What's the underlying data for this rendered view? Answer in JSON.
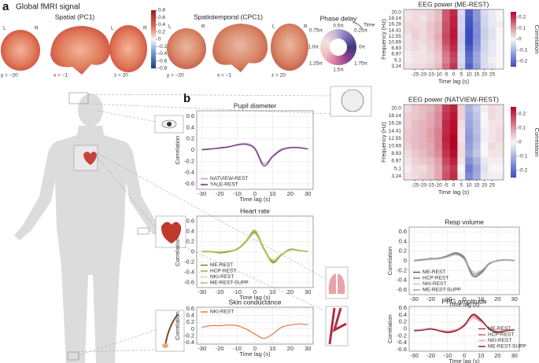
{
  "panel_labels": [
    "a",
    "b"
  ],
  "brain": {
    "title": "Global fMRI signal",
    "spatial_title": "Spatial (PC1)",
    "spatiotemporal_title": "Spatiotemporal (CPC1)",
    "coords": [
      "y = −20",
      "x = −1",
      "z = 20"
    ],
    "lr": [
      "L",
      "R"
    ],
    "clim": [
      -0.8,
      0.8
    ],
    "colorbar_ticks": [
      0.8,
      0.6,
      0.4,
      0.2,
      0,
      -0.2,
      -0.4,
      -0.6,
      -0.8
    ]
  },
  "phase": {
    "title": "Phase delay",
    "labels": [
      "0.5π",
      "0.25π",
      "0π",
      "1.75π",
      "1.5π",
      "1.25π",
      "1.0π",
      "0.75π"
    ],
    "time_label": "Time"
  },
  "chart_data": [
    {
      "type": "heatmap",
      "title": "EEG power (ME-REST)",
      "x": [
        -30,
        -25,
        -20,
        -15,
        -10,
        -5,
        0,
        5,
        10,
        15,
        20,
        25,
        30
      ],
      "categories": [
        "20.0",
        "18.14",
        "16.28",
        "14.41",
        "12.55",
        "10.69",
        "8.83",
        "6.97",
        "5.1",
        "3.24"
      ],
      "z": [
        [
          0.02,
          0.03,
          0.03,
          0.04,
          0.06,
          0.16,
          0.21,
          -0.04,
          -0.22,
          -0.14,
          -0.04,
          -0.02,
          0.0
        ],
        [
          0.02,
          0.03,
          0.02,
          0.04,
          0.06,
          0.16,
          0.22,
          -0.05,
          -0.23,
          -0.14,
          -0.05,
          -0.02,
          0.0
        ],
        [
          0.03,
          0.03,
          0.03,
          0.05,
          0.07,
          0.17,
          0.22,
          -0.05,
          -0.24,
          -0.15,
          -0.05,
          -0.02,
          0.01
        ],
        [
          0.03,
          0.04,
          0.03,
          0.05,
          0.07,
          0.17,
          0.23,
          -0.05,
          -0.25,
          -0.15,
          -0.06,
          -0.03,
          0.0
        ],
        [
          0.02,
          0.04,
          0.03,
          0.05,
          0.08,
          0.18,
          0.23,
          -0.06,
          -0.26,
          -0.16,
          -0.06,
          -0.03,
          0.0
        ],
        [
          0.02,
          0.03,
          0.03,
          0.04,
          0.07,
          0.17,
          0.22,
          -0.06,
          -0.25,
          -0.15,
          -0.05,
          -0.02,
          0.0
        ],
        [
          0.02,
          0.03,
          0.02,
          0.04,
          0.06,
          0.15,
          0.21,
          -0.05,
          -0.23,
          -0.14,
          -0.05,
          -0.02,
          0.0
        ],
        [
          0.01,
          0.02,
          0.02,
          0.03,
          0.05,
          0.13,
          0.19,
          -0.04,
          -0.21,
          -0.12,
          -0.04,
          -0.02,
          0.0
        ],
        [
          0.01,
          0.02,
          0.02,
          0.03,
          0.05,
          0.12,
          0.18,
          -0.04,
          -0.2,
          -0.12,
          -0.04,
          -0.01,
          0.0
        ],
        [
          0.02,
          0.03,
          0.03,
          0.04,
          0.06,
          0.14,
          0.2,
          -0.05,
          -0.22,
          -0.13,
          -0.04,
          -0.02,
          0.0
        ]
      ],
      "xlim": [
        -32.5,
        32.5
      ],
      "xticks": [
        -25,
        -20,
        -15,
        -10,
        -5,
        0,
        5,
        10,
        15,
        20,
        25
      ],
      "xlabel": "Time lag (s)",
      "ylabel": "Frequency (Hz)",
      "zlim": [
        -0.25,
        0.25
      ],
      "zticks": [
        0.2,
        0.1,
        0,
        -0.1,
        -0.2
      ],
      "colorbar_label": "Correlation"
    },
    {
      "type": "heatmap",
      "title": "EEG power (NATVIEW-REST)",
      "x": [
        -30,
        -25,
        -20,
        -15,
        -10,
        -5,
        0,
        5,
        10,
        15,
        20,
        25,
        30
      ],
      "categories": [
        "20.0",
        "18.14",
        "16.28",
        "14.41",
        "12.55",
        "10.69",
        "8.83",
        "6.97",
        "5.1",
        "3.24"
      ],
      "z": [
        [
          0.03,
          0.05,
          0.06,
          0.07,
          0.1,
          0.19,
          0.22,
          0.04,
          -0.1,
          -0.06,
          0.01,
          0.03,
          0.02
        ],
        [
          0.04,
          0.05,
          0.06,
          0.08,
          0.11,
          0.2,
          0.23,
          0.04,
          -0.11,
          -0.07,
          0.0,
          0.03,
          0.02
        ],
        [
          0.04,
          0.06,
          0.07,
          0.08,
          0.11,
          0.21,
          0.24,
          0.03,
          -0.12,
          -0.08,
          0.0,
          0.02,
          0.02
        ],
        [
          0.05,
          0.06,
          0.07,
          0.09,
          0.12,
          0.21,
          0.24,
          0.02,
          -0.13,
          -0.08,
          -0.01,
          0.02,
          0.03
        ],
        [
          0.05,
          0.06,
          0.07,
          0.09,
          0.12,
          0.22,
          0.25,
          0.02,
          -0.14,
          -0.09,
          -0.01,
          0.02,
          0.03
        ],
        [
          0.04,
          0.06,
          0.07,
          0.08,
          0.12,
          0.21,
          0.25,
          0.03,
          -0.13,
          -0.08,
          0.0,
          0.03,
          0.02
        ],
        [
          0.03,
          0.05,
          0.06,
          0.08,
          0.11,
          0.2,
          0.24,
          0.03,
          -0.12,
          -0.07,
          0.0,
          0.02,
          0.02
        ],
        [
          0.02,
          0.04,
          0.05,
          0.06,
          0.09,
          0.18,
          0.22,
          0.02,
          -0.15,
          -0.1,
          -0.02,
          0.01,
          0.01
        ],
        [
          0.01,
          0.03,
          0.03,
          0.05,
          0.08,
          0.16,
          0.2,
          0.0,
          -0.18,
          -0.12,
          -0.03,
          0.0,
          0.0
        ],
        [
          0.02,
          0.03,
          0.04,
          0.05,
          0.08,
          0.17,
          0.21,
          0.01,
          -0.16,
          -0.11,
          -0.02,
          0.01,
          0.01
        ]
      ],
      "xlim": [
        -32.5,
        32.5
      ],
      "xticks": [
        -25,
        -20,
        -15,
        -10,
        -5,
        0,
        5,
        10,
        15,
        20,
        25
      ],
      "xlabel": "Time lag (s)",
      "ylabel": "Frequency (Hz)",
      "zlim": [
        -0.25,
        0.25
      ],
      "zticks": [
        0.2,
        0.1,
        0,
        -0.1,
        -0.2
      ],
      "colorbar_label": "Correlation"
    },
    {
      "type": "line",
      "title": "Pupil diameter",
      "x": [
        -30,
        -25,
        -20,
        -15,
        -10,
        -5,
        0,
        5,
        10,
        15,
        20,
        25,
        30
      ],
      "series": [
        {
          "name": "NATVIEW-REST",
          "color": "#c58fcc",
          "values": [
            0,
            0.02,
            0.03,
            0.05,
            0.1,
            0.12,
            0.04,
            -0.24,
            -0.1,
            0.02,
            0.05,
            0.05,
            0.02
          ]
        },
        {
          "name": "YALE-REST",
          "color": "#5a2566",
          "values": [
            0.01,
            0.02,
            0.04,
            0.06,
            0.09,
            0.1,
            0.02,
            -0.28,
            -0.12,
            0.0,
            0.04,
            0.04,
            0.02
          ]
        }
      ],
      "xlim": [
        -33,
        33
      ],
      "xticks": [
        -30,
        -20,
        -10,
        0,
        10,
        20,
        30
      ],
      "ylim": [
        -0.7,
        0.7
      ],
      "yticks": [
        0.6,
        0.4,
        0.2,
        0,
        -0.2,
        -0.4,
        -0.6
      ],
      "xlabel": "Time lag (s)",
      "ylabel": "Correlation",
      "legend": "lower left",
      "grid": true
    },
    {
      "type": "line",
      "title": "Heart rate",
      "x": [
        -30,
        -25,
        -20,
        -15,
        -10,
        -5,
        0,
        5,
        10,
        15,
        20,
        25,
        30
      ],
      "series": [
        {
          "name": "ME-REST",
          "color": "#5f7f1e",
          "values": [
            0,
            0,
            -0.02,
            0,
            0.05,
            0.2,
            0.38,
            0.05,
            -0.2,
            -0.05,
            0.05,
            0.03,
            0
          ]
        },
        {
          "name": "HCP-REST",
          "color": "#8db33a",
          "values": [
            0.01,
            0.01,
            0,
            0.01,
            0.06,
            0.22,
            0.42,
            0.08,
            -0.18,
            -0.06,
            0.04,
            0.02,
            0.01
          ]
        },
        {
          "name": "NKI-REST",
          "color": "#c9dd8f",
          "values": [
            0,
            0.01,
            0,
            0.02,
            0.04,
            0.18,
            0.35,
            0.04,
            -0.15,
            -0.04,
            0.03,
            0.02,
            0
          ]
        },
        {
          "name": "ME-REST-SUPP",
          "color": "#a6c25a",
          "values": [
            0,
            0,
            -0.01,
            0.01,
            0.05,
            0.21,
            0.4,
            0.06,
            -0.22,
            -0.07,
            0.04,
            0.03,
            0.01
          ]
        }
      ],
      "xlim": [
        -33,
        33
      ],
      "xticks": [
        -30,
        -20,
        -10,
        0,
        10,
        20,
        30
      ],
      "ylim": [
        -0.7,
        0.7
      ],
      "yticks": [
        0.6,
        0.4,
        0.2,
        0,
        -0.2,
        -0.4,
        -0.6
      ],
      "xlabel": "Time lag (s)",
      "ylabel": "Correlation",
      "legend": "lower left",
      "grid": true
    },
    {
      "type": "line",
      "title": "Skin conductance",
      "x": [
        -30,
        -25,
        -20,
        -15,
        -10,
        -5,
        0,
        5,
        10,
        15,
        20,
        25,
        30
      ],
      "series": [
        {
          "name": "NKI-REST",
          "color": "#e0733a",
          "values": [
            0.05,
            0.1,
            0.1,
            0.12,
            0.1,
            0,
            -0.15,
            -0.28,
            -0.15,
            0.05,
            0.12,
            0.15,
            0.13
          ]
        }
      ],
      "xlim": [
        -33,
        33
      ],
      "xticks": [
        -30,
        -20,
        -10,
        0,
        10,
        20,
        30
      ],
      "ylim": [
        -0.45,
        0.65
      ],
      "yticks": [
        0.6,
        0.4,
        0.2,
        0,
        -0.2,
        -0.4
      ],
      "xlabel": "Time lag (s)",
      "ylabel": "Correlation",
      "legend": "upper left",
      "grid": true
    },
    {
      "type": "line",
      "title": "Resp volume",
      "x": [
        -30,
        -25,
        -20,
        -15,
        -10,
        -5,
        0,
        5,
        10,
        15,
        20,
        25,
        30
      ],
      "series": [
        {
          "name": "ME-REST",
          "color": "#555555",
          "values": [
            0,
            0.02,
            0.05,
            0.05,
            0.1,
            0.15,
            0.05,
            -0.3,
            -0.25,
            -0.05,
            0,
            0.02,
            0
          ]
        },
        {
          "name": "HCP-REST",
          "color": "#7d7d7d",
          "values": [
            0.01,
            0.03,
            0.04,
            0.06,
            0.11,
            0.17,
            0.08,
            -0.26,
            -0.22,
            -0.06,
            0.01,
            0.02,
            0.01
          ]
        },
        {
          "name": "NKI-REST",
          "color": "#c4c4c4",
          "values": [
            0,
            0.01,
            0.03,
            0.04,
            0.08,
            0.12,
            0.04,
            -0.22,
            -0.2,
            -0.04,
            0,
            0.01,
            0
          ]
        },
        {
          "name": "ME-REST-SUPP",
          "color": "#a0a0a0",
          "values": [
            0,
            0.02,
            0.04,
            0.05,
            0.09,
            0.14,
            0.03,
            -0.32,
            -0.27,
            -0.07,
            0,
            0.02,
            0.01
          ]
        }
      ],
      "xlim": [
        -33,
        33
      ],
      "xticks": [
        -30,
        -20,
        -10,
        0,
        10,
        20,
        30
      ],
      "ylim": [
        -0.7,
        0.7
      ],
      "yticks": [
        0.6,
        0.4,
        0.2,
        0,
        -0.2,
        -0.4,
        -0.6
      ],
      "xlabel": "Time lag (s)",
      "ylabel": "Correlation",
      "legend": "lower left",
      "grid": true
    },
    {
      "type": "line",
      "title": "PPG amplitude",
      "x": [
        -30,
        -25,
        -20,
        -15,
        -10,
        -5,
        0,
        5,
        10,
        15,
        20,
        25,
        30
      ],
      "series": [
        {
          "name": "ME-REST",
          "color": "#a83240",
          "values": [
            -0.05,
            -0.03,
            0,
            -0.05,
            -0.1,
            -0.05,
            0.1,
            0.4,
            0.25,
            0,
            -0.1,
            -0.05,
            -0.03
          ]
        },
        {
          "name": "HCP-REST",
          "color": "#cc5a66",
          "values": [
            -0.04,
            -0.02,
            0.01,
            -0.04,
            -0.08,
            -0.03,
            0.12,
            0.36,
            0.22,
            0.01,
            -0.08,
            -0.04,
            -0.02
          ]
        },
        {
          "name": "NKI-REST",
          "color": "#eca4ab",
          "values": [
            -0.03,
            -0.02,
            0,
            -0.03,
            -0.06,
            -0.02,
            0.08,
            0.3,
            0.2,
            0.02,
            -0.06,
            -0.03,
            -0.02
          ]
        },
        {
          "name": "ME-REST-SUPP",
          "color": "#7e1a28",
          "values": [
            -0.06,
            -0.04,
            -0.01,
            -0.06,
            -0.11,
            -0.06,
            0.09,
            0.42,
            0.27,
            -0.01,
            -0.11,
            -0.06,
            -0.04
          ]
        }
      ],
      "xlim": [
        -33,
        33
      ],
      "xticks": [
        -30,
        -20,
        -10,
        0,
        10,
        20,
        30
      ],
      "ylim": [
        -0.65,
        0.65
      ],
      "yticks": [
        0.6,
        0.4,
        0.2,
        0,
        -0.2,
        -0.4,
        -0.6
      ],
      "xlabel": "Time lag (s)",
      "ylabel": "Correlation",
      "legend": "lower right",
      "grid": true
    }
  ]
}
